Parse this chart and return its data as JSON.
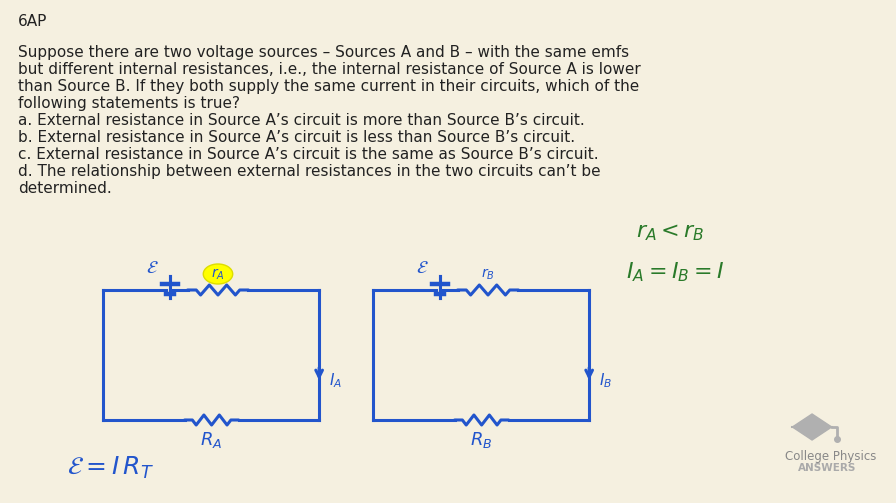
{
  "background_color": "#f5f0e0",
  "title_text": "6AP",
  "title_color": "#333333",
  "body_text_color": "#222222",
  "blue_color": "#2255cc",
  "green_color": "#2a7a2a",
  "yellow_highlight": "#ffff00",
  "question_lines": [
    "Suppose there are two voltage sources – Sources A and B – with the same emfs",
    "but different internal resistances, i.e., the internal resistance of Source A is lower",
    "than Source B. If they both supply the same current in their circuits, which of the",
    "following statements is true?",
    "a. External resistance in Source A’s circuit is more than Source B’s circuit.",
    "b. External resistance in Source A’s circuit is less than Source B’s circuit.",
    "c. External resistance in Source A’s circuit is the same as Source B’s circuit.",
    "d. The relationship between external resistances in the two circuits can’t be",
    "determined."
  ],
  "logo_text1": "College Physics",
  "logo_text2": "ANSWERS"
}
